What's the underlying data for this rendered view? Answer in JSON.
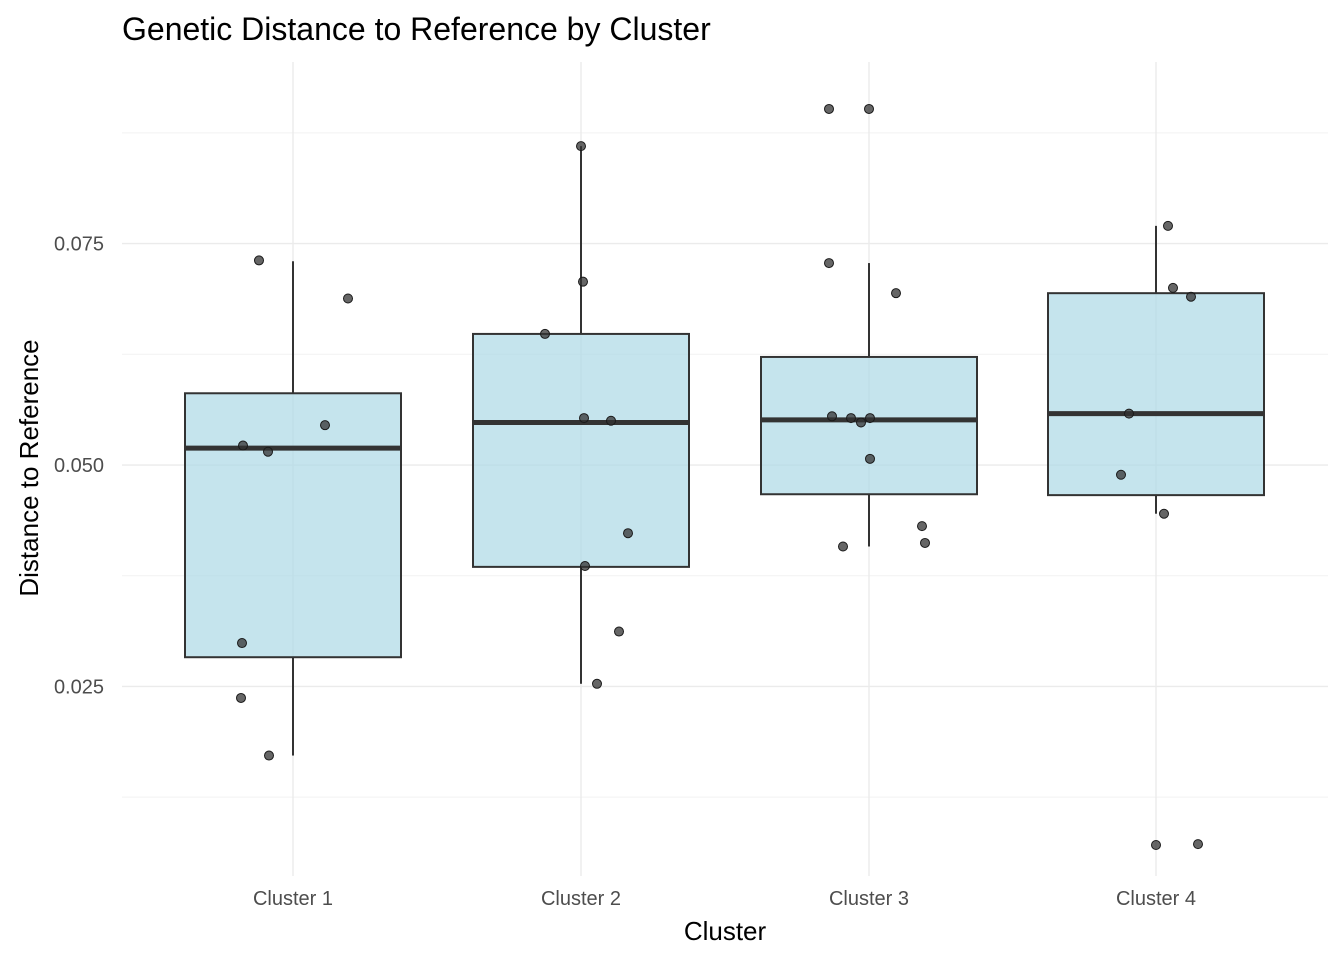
{
  "chart_data": {
    "type": "box",
    "title": "Genetic Distance to Reference by Cluster",
    "xlabel": "Cluster",
    "ylabel": "Distance to Reference",
    "categories": [
      "Cluster 1",
      "Cluster 2",
      "Cluster 3",
      "Cluster 4"
    ],
    "y_ticks": [
      0.025,
      0.05,
      0.075
    ],
    "y_tick_labels": [
      "0.025",
      "0.050",
      "0.075"
    ],
    "ylim": [
      0.0036,
      0.0955
    ],
    "grid": true,
    "boxes": [
      {
        "category": "Cluster 1",
        "whisker_low": 0.0172,
        "q1": 0.0283,
        "median": 0.0519,
        "q3": 0.0581,
        "whisker_high": 0.073,
        "points": [
          0.0731,
          0.0688,
          0.0522,
          0.0515,
          0.0545,
          0.0299,
          0.0237,
          0.0172
        ]
      },
      {
        "category": "Cluster 2",
        "whisker_low": 0.0253,
        "q1": 0.0385,
        "median": 0.0548,
        "q3": 0.0648,
        "whisker_high": 0.086,
        "points": [
          0.086,
          0.0707,
          0.0648,
          0.0553,
          0.055,
          0.0423,
          0.0386,
          0.0312,
          0.0253
        ]
      },
      {
        "category": "Cluster 3",
        "whisker_low": 0.0408,
        "q1": 0.0467,
        "median": 0.0551,
        "q3": 0.0622,
        "whisker_high": 0.0728,
        "points": [
          0.0902,
          0.0902,
          0.0728,
          0.0694,
          0.0555,
          0.0553,
          0.0553,
          0.0548,
          0.0507,
          0.0431,
          0.0412,
          0.0408
        ]
      },
      {
        "category": "Cluster 4",
        "whisker_low": 0.0445,
        "q1": 0.0466,
        "median": 0.0558,
        "q3": 0.0694,
        "whisker_high": 0.077,
        "points": [
          0.077,
          0.07,
          0.069,
          0.0558,
          0.0489,
          0.0445,
          0.0071,
          0.0072
        ]
      }
    ],
    "colors": {
      "box_fill": "#add8e6",
      "box_stroke": "#333333",
      "point": "#333333",
      "grid": "#ebebeb"
    }
  }
}
